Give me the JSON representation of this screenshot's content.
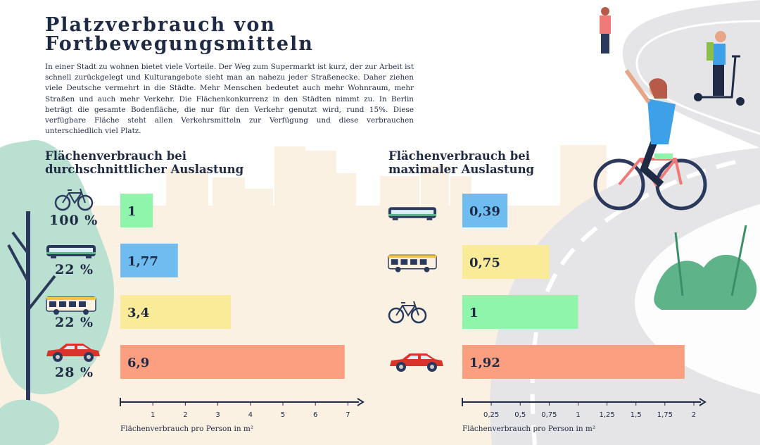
{
  "title": "Platzverbrauch von\nFortbewegungsmitteln",
  "intro": "In einer Stadt zu wohnen bietet viele Vorteile. Der Weg zum Supermarkt ist kurz, der zur Arbeit ist schnell zurückgelegt und Kulturangebote sieht man an nahezu jeder Straßenecke. Daher ziehen viele Deutsche vermehrt in die Städte. Mehr Menschen bedeutet auch mehr Wohnraum, mehr Straßen und auch mehr Verkehr. Die Flächenkonkurrenz in den Städten nimmt zu. In Berlin beträgt die gesamte Bodenfläche, die nur für den Verkehr genutzt wird, rund 15%. Diese verfügbare Fläche steht allen Verkehrsmitteln zur Verfügung und diese verbrauchen unterschiedlich viel Platz.",
  "colors": {
    "bicycle": "#8ef5aa",
    "tram": "#6fbcf0",
    "bus": "#faeb98",
    "car": "#fc9f80"
  },
  "chart_data": [
    {
      "type": "bar",
      "orientation": "horizontal",
      "title": "Flächenverbrauch bei\ndurchschnittlicher Auslastung",
      "xlabel": "Flächenverbrauch pro Person in m²",
      "categories": [
        "bicycle-icon",
        "tram-icon",
        "bus-icon",
        "car-icon"
      ],
      "values": [
        1,
        1.77,
        3.4,
        6.9
      ],
      "value_labels": [
        "1",
        "1,77",
        "3,4",
        "6,9"
      ],
      "occupancy": [
        "100 %",
        "22 %",
        "22 %",
        "28 %"
      ],
      "xlim": [
        0,
        7
      ],
      "ticks": [
        1,
        2,
        3,
        4,
        5,
        6,
        7
      ],
      "tick_labels": [
        "1",
        "2",
        "3",
        "4",
        "5",
        "6",
        "7"
      ]
    },
    {
      "type": "bar",
      "orientation": "horizontal",
      "title": "Flächenverbrauch bei\nmaximaler Auslastung",
      "xlabel": "Flächenverbrauch pro Person in m²",
      "categories": [
        "tram-icon",
        "bus-icon",
        "bicycle-icon",
        "car-icon"
      ],
      "values": [
        0.39,
        0.75,
        1,
        1.92
      ],
      "value_labels": [
        "0,39",
        "0,75",
        "1",
        "1,92"
      ],
      "xlim": [
        0,
        2
      ],
      "ticks": [
        0.25,
        0.5,
        0.75,
        1,
        1.25,
        1.5,
        1.75,
        2
      ],
      "tick_labels": [
        "0,25",
        "0,5",
        "0,75",
        "1",
        "1,25",
        "1,5",
        "1,75",
        "2"
      ]
    }
  ]
}
